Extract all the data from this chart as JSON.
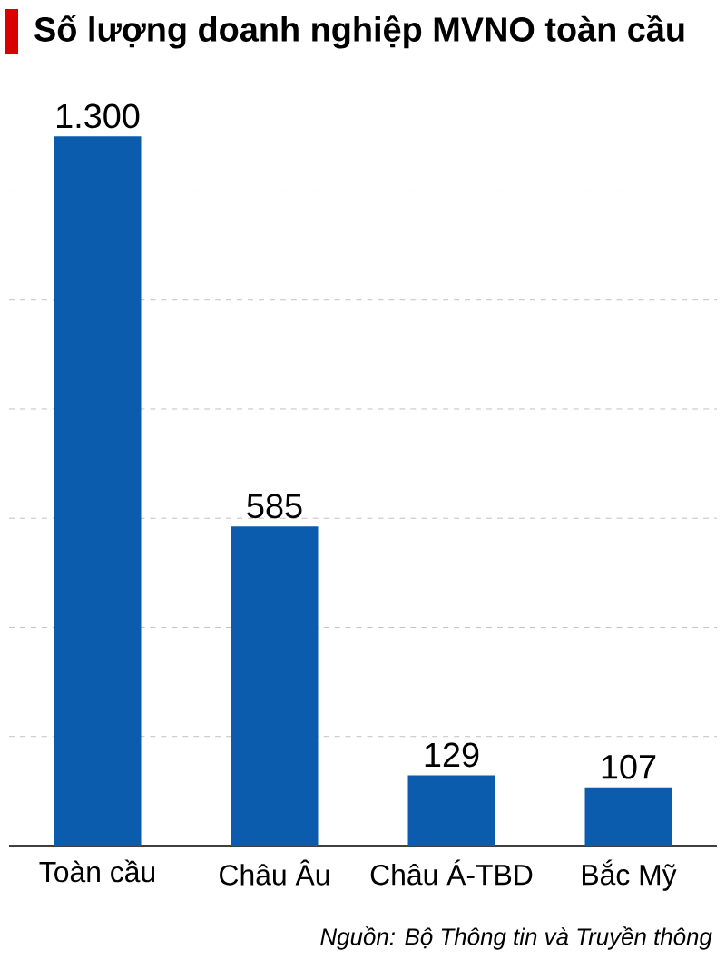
{
  "chart_data": {
    "type": "bar",
    "title": "Số lượng doanh nghiệp MVNO toàn cầu",
    "categories": [
      "Toàn cầu",
      "Châu Âu",
      "Châu Á-TBD",
      "Bắc Mỹ"
    ],
    "values": [
      1300,
      585,
      129,
      107
    ],
    "color": "#0b5cad",
    "yticks": [
      {
        "value": 200,
        "label": null
      },
      {
        "value": 400,
        "label": null
      },
      {
        "value": 600,
        "label": null
      },
      {
        "value": 800,
        "label": null
      },
      {
        "value": 1000,
        "label": null
      },
      {
        "value": 1200,
        "label": null
      }
    ],
    "grid": "y",
    "tick_labels": "x",
    "value_labels": [
      "1.300",
      "585",
      "129",
      "107"
    ],
    "annotations": [
      "*Nguồn: Bộ Thông tin và Truyền thông*"
    ]
  }
}
